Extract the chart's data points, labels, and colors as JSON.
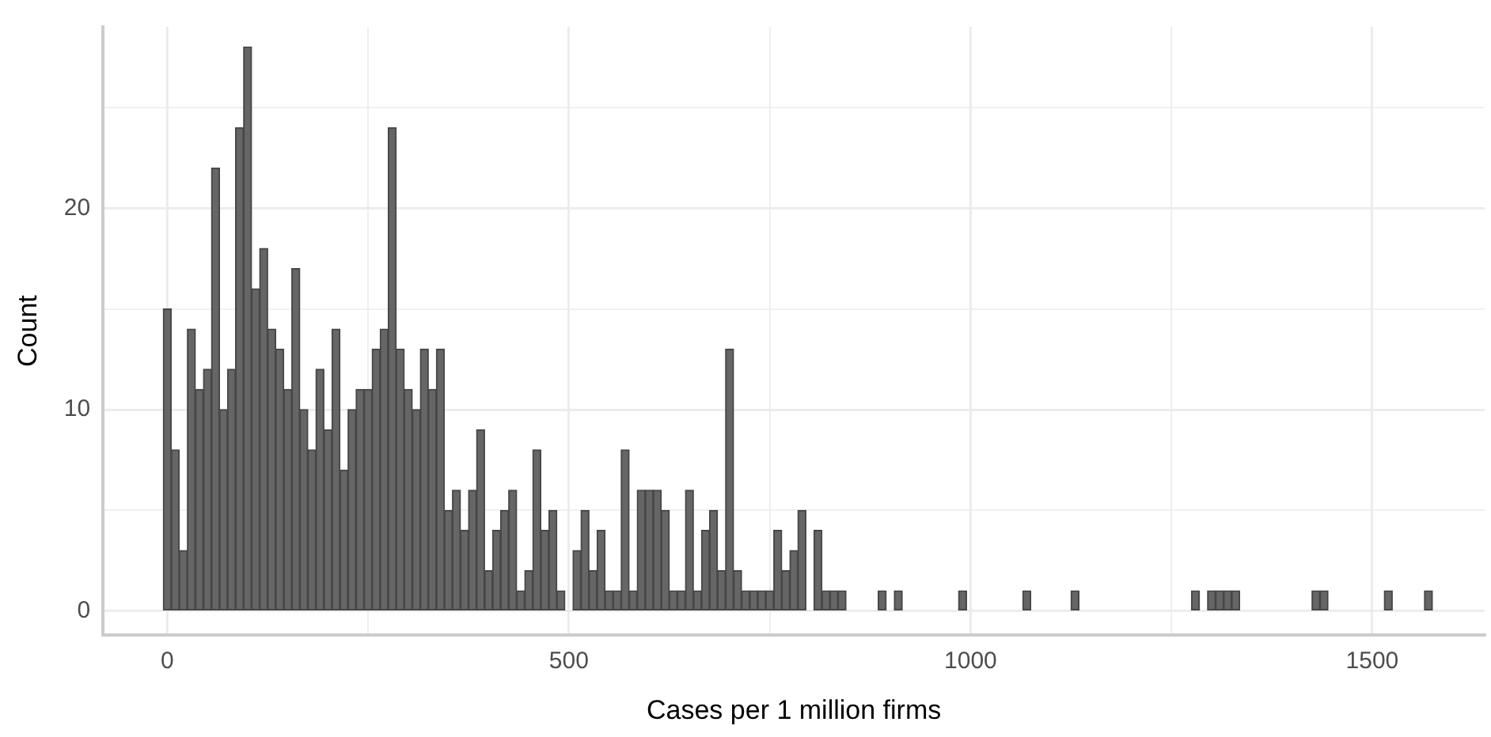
{
  "chart_data": {
    "type": "histogram",
    "xlabel": "Cases per 1 million firms",
    "ylabel": "Count",
    "bins": [
      -5,
      5,
      15,
      25,
      35,
      45,
      55,
      65,
      75,
      85,
      95,
      105,
      115,
      125,
      135,
      145,
      155,
      165,
      175,
      185,
      195,
      205,
      215,
      225,
      235,
      245,
      255,
      265,
      275,
      285,
      295,
      305,
      315,
      325,
      335,
      345,
      355,
      365,
      375,
      385,
      395,
      405,
      415,
      425,
      435,
      445,
      455,
      465,
      475,
      485,
      495,
      505,
      515,
      525,
      535,
      545,
      555,
      565,
      575,
      585,
      595,
      605,
      615,
      625,
      635,
      645,
      655,
      665,
      675,
      685,
      695,
      705,
      715,
      725,
      735,
      745,
      755,
      765,
      775,
      785,
      795,
      805,
      815,
      825,
      835,
      845,
      855,
      865,
      875,
      885,
      895,
      905,
      915,
      925,
      935,
      945,
      955,
      965,
      975,
      985,
      995,
      1005,
      1015,
      1025,
      1035,
      1045,
      1055,
      1065,
      1075,
      1085,
      1095,
      1105,
      1115,
      1125,
      1135,
      1145,
      1155,
      1165,
      1175,
      1185,
      1195,
      1205,
      1215,
      1225,
      1235,
      1245,
      1255,
      1265,
      1275,
      1285,
      1295,
      1305,
      1315,
      1325,
      1335,
      1345,
      1355,
      1365,
      1375,
      1385,
      1395,
      1405,
      1415,
      1425,
      1435,
      1445,
      1455,
      1465,
      1475,
      1485,
      1495,
      1505,
      1515,
      1525,
      1535,
      1545,
      1555,
      1565,
      1575
    ],
    "values": [
      15,
      8,
      3,
      14,
      11,
      12,
      22,
      10,
      12,
      24,
      28,
      16,
      18,
      14,
      13,
      11,
      17,
      10,
      8,
      12,
      9,
      14,
      7,
      10,
      11,
      11,
      13,
      14,
      24,
      13,
      11,
      10,
      13,
      11,
      13,
      5,
      6,
      4,
      6,
      9,
      2,
      4,
      5,
      6,
      1,
      2,
      8,
      4,
      5,
      1,
      0,
      3,
      5,
      2,
      4,
      1,
      1,
      8,
      1,
      6,
      6,
      6,
      5,
      1,
      1,
      6,
      1,
      4,
      5,
      2,
      13,
      2,
      1,
      1,
      1,
      1,
      4,
      2,
      3,
      5,
      0,
      4,
      1,
      1,
      1,
      0,
      0,
      0,
      0,
      1,
      0,
      1,
      0,
      0,
      0,
      0,
      0,
      0,
      0,
      1,
      0,
      0,
      0,
      0,
      0,
      0,
      0,
      1,
      0,
      0,
      0,
      0,
      0,
      1,
      0,
      0,
      0,
      0,
      0,
      0,
      0,
      0,
      0,
      0,
      0,
      0,
      0,
      0,
      1,
      0,
      1,
      1,
      1,
      1,
      0,
      0,
      0,
      0,
      0,
      0,
      0,
      0,
      0,
      1,
      1,
      0,
      0,
      0,
      0,
      0,
      0,
      0,
      1,
      0,
      0,
      0,
      0,
      1
    ],
    "color": "#666666",
    "xlim": [
      -80,
      1640
    ],
    "ylim": [
      -1.2,
      29
    ],
    "xticks": [
      0,
      {
        "value": 250,
        "label": null
      },
      500,
      {
        "value": 750,
        "label": null
      },
      1000,
      {
        "value": 1250,
        "label": null
      },
      1500
    ],
    "yticks": [
      0,
      {
        "value": 5,
        "label": null
      },
      10,
      {
        "value": 15,
        "label": null
      },
      20,
      {
        "value": 25,
        "label": null
      }
    ],
    "grid": true
  }
}
